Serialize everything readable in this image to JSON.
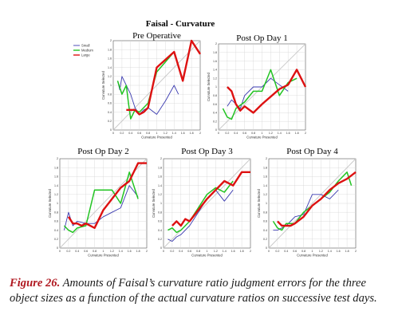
{
  "figure_title": "Faisal - Curvature",
  "caption": {
    "label": "Figure 26.",
    "text": " Amounts of Faisal’s curvature ratio judgment errors for the three object sizes as a function of the actual curvature ratios on successive test days."
  },
  "colors": {
    "small": "#3b3bb0",
    "medium": "#22c422",
    "large": "#dd1111",
    "identity": "#c8c8c8",
    "grid": "#d4d4d4"
  },
  "chart_data": [
    {
      "type": "line",
      "title": "Pre Operative",
      "xlabel": "Curvature Presented",
      "ylabel": "Curvature Selected",
      "xlim": [
        0,
        2
      ],
      "ylim": [
        0,
        2
      ],
      "x_ticks": [
        "0",
        "0.2",
        "0.4",
        "0.6",
        "0.8",
        "1",
        "1.2",
        "1.4",
        "1.6",
        "1.8",
        "2"
      ],
      "y_ticks": [
        "0",
        "0.2",
        "0.4",
        "0.6",
        "0.8",
        "1",
        "1.2",
        "1.4",
        "1.6",
        "1.8",
        "2"
      ],
      "legend": {
        "position": "top-left",
        "entries": [
          "Small",
          "Medium",
          "Large"
        ]
      },
      "grid": true,
      "series": [
        {
          "name": "Small",
          "x": [
            0.1,
            0.15,
            0.2,
            0.3,
            0.4,
            0.5,
            0.6,
            0.7,
            0.8,
            1.0,
            1.2,
            1.4,
            1.5
          ],
          "y": [
            1.1,
            0.9,
            1.2,
            1.0,
            0.8,
            0.5,
            0.35,
            0.45,
            0.5,
            0.35,
            0.65,
            1.0,
            0.8
          ]
        },
        {
          "name": "Medium",
          "x": [
            0.1,
            0.2,
            0.3,
            0.35,
            0.4,
            0.5,
            0.6,
            0.8,
            1.0,
            1.4
          ],
          "y": [
            1.1,
            0.8,
            1.0,
            0.6,
            0.25,
            0.45,
            0.4,
            0.6,
            1.3,
            1.75
          ]
        },
        {
          "name": "Large",
          "x": [
            0.3,
            0.4,
            0.5,
            0.6,
            0.7,
            0.8,
            1.0,
            1.4,
            1.6,
            1.8,
            2.0
          ],
          "y": [
            0.45,
            0.45,
            0.45,
            0.35,
            0.4,
            0.5,
            1.4,
            1.75,
            1.1,
            2.0,
            1.7
          ]
        }
      ]
    },
    {
      "type": "line",
      "title": "Post Op Day 1",
      "xlabel": "Curvature Presented",
      "ylabel": "Curvature Selected",
      "xlim": [
        0,
        2
      ],
      "ylim": [
        0,
        2
      ],
      "x_ticks": [
        "0",
        "0.2",
        "0.4",
        "0.6",
        "0.8",
        "1",
        "1.2",
        "1.4",
        "1.6",
        "1.8",
        "2"
      ],
      "y_ticks": [
        "0",
        "0.2",
        "0.4",
        "0.6",
        "0.8",
        "1",
        "1.2",
        "1.4",
        "1.6",
        "1.8",
        "2"
      ],
      "grid": true,
      "series": [
        {
          "name": "Small",
          "x": [
            0.2,
            0.3,
            0.4,
            0.5,
            0.6,
            0.8,
            1.0,
            1.2,
            1.4,
            1.6
          ],
          "y": [
            0.55,
            0.7,
            0.6,
            0.5,
            0.8,
            1.0,
            1.0,
            1.2,
            1.05,
            0.9
          ]
        },
        {
          "name": "Medium",
          "x": [
            0.1,
            0.2,
            0.3,
            0.4,
            0.6,
            0.8,
            1.0,
            1.2,
            1.4,
            1.6,
            1.8
          ],
          "y": [
            0.5,
            0.3,
            0.25,
            0.5,
            0.65,
            0.9,
            0.9,
            1.4,
            0.8,
            1.1,
            1.2
          ]
        },
        {
          "name": "Large",
          "x": [
            0.2,
            0.3,
            0.4,
            0.5,
            0.6,
            0.8,
            1.0,
            1.4,
            1.6,
            1.8,
            2.0
          ],
          "y": [
            1.0,
            0.9,
            0.6,
            0.45,
            0.55,
            0.4,
            0.6,
            0.95,
            1.05,
            1.4,
            1.0
          ]
        }
      ]
    },
    {
      "type": "line",
      "title": "Post Op Day 2",
      "xlabel": "Curvature Presented",
      "ylabel": "Curvature Selected",
      "xlim": [
        0,
        2
      ],
      "ylim": [
        0,
        2
      ],
      "x_ticks": [
        "0",
        "0.2",
        "0.4",
        "0.6",
        "0.8",
        "1",
        "1.2",
        "1.4",
        "1.6",
        "1.8",
        "2"
      ],
      "y_ticks": [
        "0",
        "0.2",
        "0.4",
        "0.6",
        "0.8",
        "1",
        "1.2",
        "1.4",
        "1.6",
        "1.8",
        "2"
      ],
      "grid": true,
      "series": [
        {
          "name": "Small",
          "x": [
            0.1,
            0.2,
            0.3,
            0.4,
            0.6,
            0.8,
            1.0,
            1.2,
            1.4,
            1.6,
            1.8
          ],
          "y": [
            0.4,
            0.8,
            0.5,
            0.6,
            0.55,
            0.55,
            0.7,
            0.8,
            0.9,
            1.4,
            1.15
          ]
        },
        {
          "name": "Medium",
          "x": [
            0.1,
            0.2,
            0.3,
            0.4,
            0.6,
            0.8,
            1.0,
            1.2,
            1.4,
            1.6,
            1.8
          ],
          "y": [
            0.5,
            0.4,
            0.35,
            0.45,
            0.5,
            1.3,
            1.3,
            1.3,
            1.0,
            1.7,
            1.1
          ]
        },
        {
          "name": "Large",
          "x": [
            0.2,
            0.3,
            0.4,
            0.5,
            0.6,
            0.8,
            1.0,
            1.2,
            1.4,
            1.6,
            1.8,
            2.0
          ],
          "y": [
            0.7,
            0.55,
            0.55,
            0.5,
            0.55,
            0.45,
            0.85,
            1.1,
            1.35,
            1.5,
            1.9,
            1.9
          ]
        }
      ]
    },
    {
      "type": "line",
      "title": "Post Op Day 3",
      "xlabel": "Curvature Presented",
      "ylabel": "Curvature Selected",
      "xlim": [
        0,
        2
      ],
      "ylim": [
        0,
        2
      ],
      "x_ticks": [
        "0",
        "0.2",
        "0.4",
        "0.6",
        "0.8",
        "1",
        "1.2",
        "1.4",
        "1.6",
        "1.8",
        "2"
      ],
      "y_ticks": [
        "0",
        "0.2",
        "0.4",
        "0.6",
        "0.8",
        "1",
        "1.2",
        "1.4",
        "1.6",
        "1.8",
        "2"
      ],
      "grid": true,
      "series": [
        {
          "name": "Small",
          "x": [
            0.1,
            0.2,
            0.3,
            0.4,
            0.6,
            0.8,
            1.0,
            1.2,
            1.4,
            1.6
          ],
          "y": [
            0.2,
            0.15,
            0.25,
            0.3,
            0.5,
            0.8,
            1.1,
            1.3,
            1.05,
            1.3
          ]
        },
        {
          "name": "Medium",
          "x": [
            0.1,
            0.2,
            0.3,
            0.4,
            0.6,
            0.8,
            1.0,
            1.2,
            1.4,
            1.6
          ],
          "y": [
            0.4,
            0.45,
            0.35,
            0.4,
            0.6,
            0.9,
            1.2,
            1.35,
            1.25,
            1.5
          ]
        },
        {
          "name": "Large",
          "x": [
            0.2,
            0.3,
            0.4,
            0.5,
            0.6,
            0.8,
            1.0,
            1.2,
            1.4,
            1.6,
            1.8,
            2.0
          ],
          "y": [
            0.5,
            0.6,
            0.5,
            0.65,
            0.6,
            0.85,
            1.1,
            1.3,
            1.5,
            1.4,
            1.7,
            1.7
          ]
        }
      ]
    },
    {
      "type": "line",
      "title": "Post Op Day 4",
      "xlabel": "Curvature Presented",
      "ylabel": "Curvature Selected",
      "xlim": [
        0,
        2
      ],
      "ylim": [
        0,
        2
      ],
      "x_ticks": [
        "0",
        "0.2",
        "0.4",
        "0.6",
        "0.8",
        "1",
        "1.2",
        "1.4",
        "1.6",
        "1.8",
        "2"
      ],
      "y_ticks": [
        "0",
        "0.2",
        "0.4",
        "0.6",
        "0.8",
        "1",
        "1.2",
        "1.4",
        "1.6",
        "1.8",
        "2"
      ],
      "grid": true,
      "series": [
        {
          "name": "Small",
          "x": [
            0.1,
            0.2,
            0.3,
            0.4,
            0.6,
            0.8,
            1.0,
            1.2,
            1.4,
            1.6
          ],
          "y": [
            0.4,
            0.4,
            0.45,
            0.5,
            0.7,
            0.75,
            1.2,
            1.2,
            1.1,
            1.3
          ]
        },
        {
          "name": "Medium",
          "x": [
            0.1,
            0.2,
            0.3,
            0.4,
            0.6,
            0.8,
            1.0,
            1.2,
            1.4,
            1.6,
            1.8,
            1.9
          ],
          "y": [
            0.6,
            0.45,
            0.4,
            0.55,
            0.55,
            0.8,
            0.95,
            1.1,
            1.25,
            1.5,
            1.7,
            1.4
          ]
        },
        {
          "name": "Large",
          "x": [
            0.2,
            0.3,
            0.4,
            0.5,
            0.6,
            0.8,
            1.0,
            1.2,
            1.4,
            1.6,
            1.8,
            2.0
          ],
          "y": [
            0.6,
            0.5,
            0.5,
            0.5,
            0.55,
            0.7,
            0.95,
            1.1,
            1.3,
            1.45,
            1.55,
            1.7
          ]
        }
      ]
    }
  ]
}
